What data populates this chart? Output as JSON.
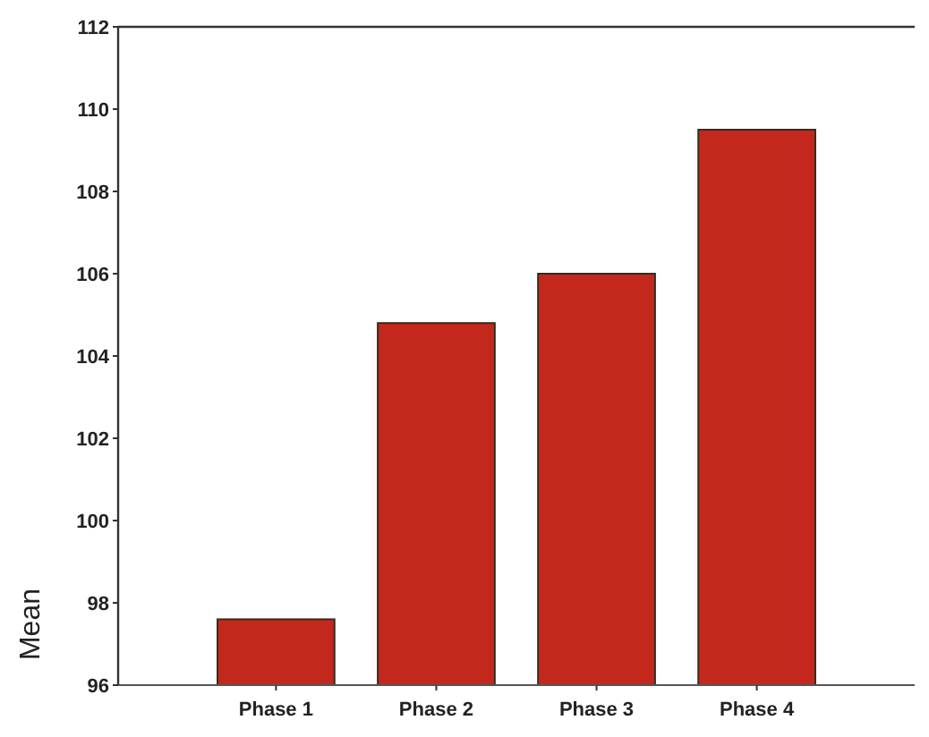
{
  "chart_data": {
    "type": "bar",
    "ylabel": "Mean",
    "categories": [
      "Phase 1",
      "Phase 2",
      "Phase 3",
      "Phase 4"
    ],
    "values": [
      97.6,
      104.8,
      106.0,
      109.5
    ],
    "color": "#c4281c",
    "ylim": [
      96,
      112
    ],
    "yticks": [
      96,
      98,
      100,
      102,
      104,
      106,
      108,
      110,
      112
    ],
    "grid": false
  }
}
